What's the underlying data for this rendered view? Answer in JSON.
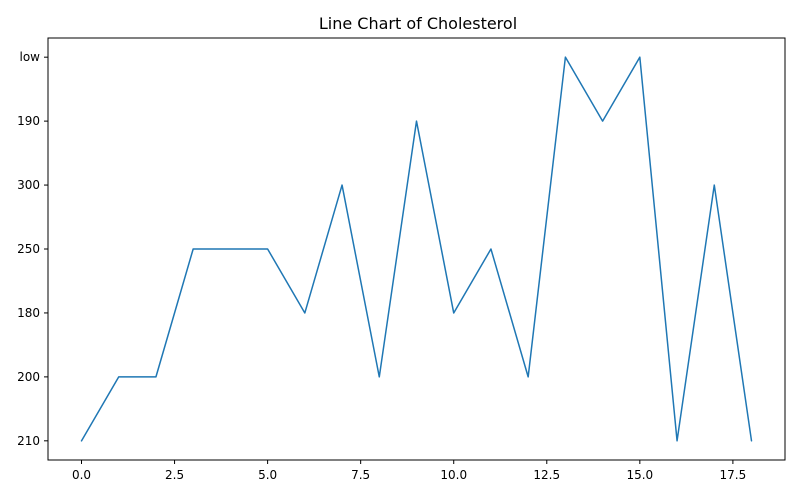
{
  "chart_data": {
    "type": "line",
    "title": "Line Chart of Cholesterol",
    "xlabel": "",
    "ylabel": "",
    "x": [
      0,
      1,
      2,
      3,
      4,
      5,
      6,
      7,
      8,
      9,
      10,
      11,
      12,
      13,
      14,
      15,
      16,
      17,
      18
    ],
    "y_categories": [
      "210",
      "200",
      "180",
      "250",
      "300",
      "190",
      "low"
    ],
    "series": [
      {
        "values": [
          "210",
          "200",
          "200",
          "250",
          "250",
          "250",
          "180",
          "300",
          "200",
          "190",
          "180",
          "250",
          "200",
          "low",
          "190",
          "low",
          "210",
          "300",
          "210"
        ],
        "color": "#1f77b4"
      }
    ],
    "xlim": [
      -0.9,
      18.9
    ],
    "x_ticks": [
      0.0,
      2.5,
      5.0,
      7.5,
      10.0,
      12.5,
      15.0,
      17.5
    ],
    "x_tick_labels": [
      "0.0",
      "2.5",
      "5.0",
      "7.5",
      "10.0",
      "12.5",
      "15.0",
      "17.5"
    ],
    "grid": false,
    "legend": "none"
  }
}
